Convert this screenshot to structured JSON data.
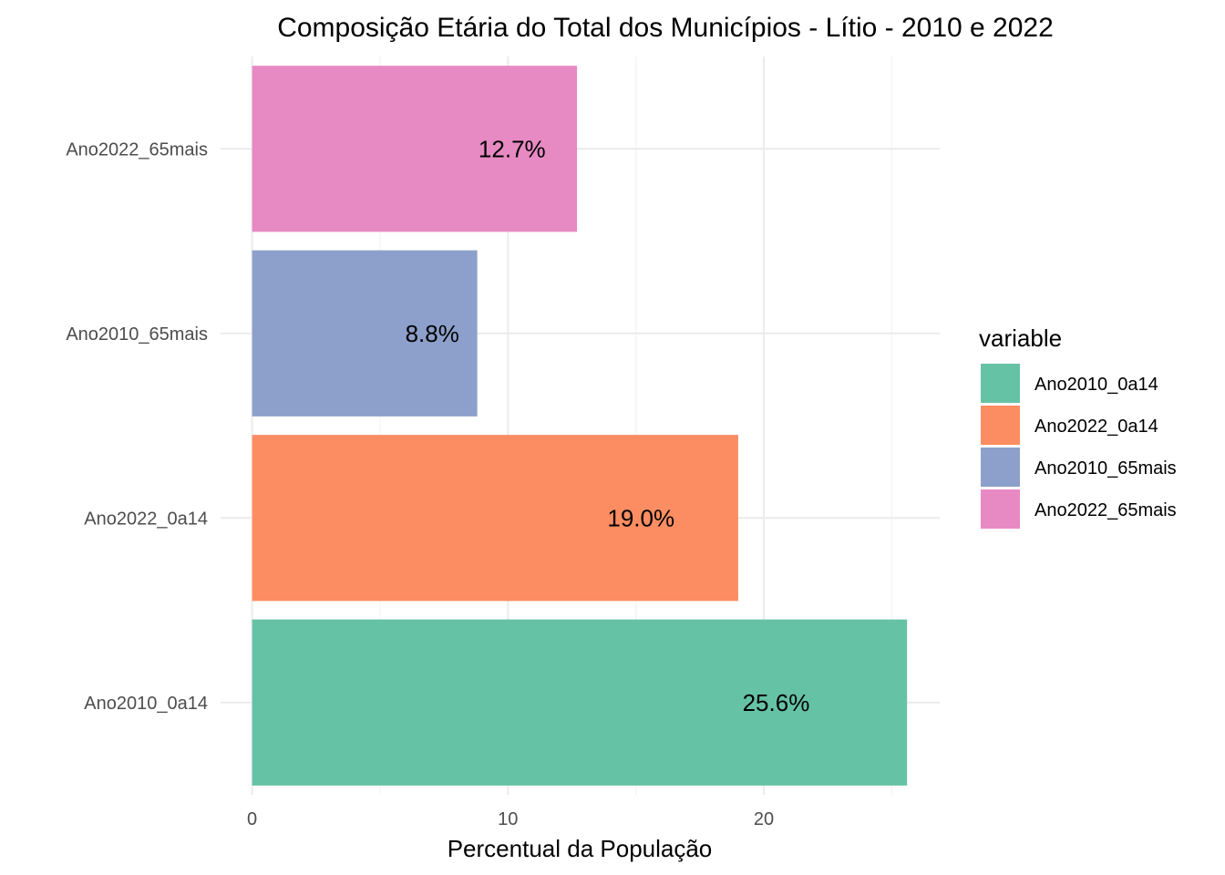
{
  "chart_data": {
    "type": "bar",
    "orientation": "horizontal",
    "title": "Composição Etária do Total dos Municípios - Lítio - 2010 e 2022",
    "xlabel": "Percentual da População",
    "ylabel": "",
    "categories": [
      "Ano2010_0a14",
      "Ano2022_0a14",
      "Ano2010_65mais",
      "Ano2022_65mais"
    ],
    "values": [
      25.6,
      19.0,
      8.8,
      12.7
    ],
    "data_labels": [
      "25.6%",
      "19.0%",
      "8.8%",
      "12.7%"
    ],
    "colors": [
      "#66c2a5",
      "#fc8d62",
      "#8da0cb",
      "#e78ac3"
    ],
    "xlim": [
      0,
      27
    ],
    "xticks": [
      0,
      10,
      20
    ],
    "xtick_labels": [
      "0",
      "10",
      "20"
    ],
    "grid": true,
    "legend": {
      "title": "variable",
      "position": "right",
      "entries": [
        "Ano2010_0a14",
        "Ano2022_0a14",
        "Ano2010_65mais",
        "Ano2022_65mais"
      ]
    }
  }
}
